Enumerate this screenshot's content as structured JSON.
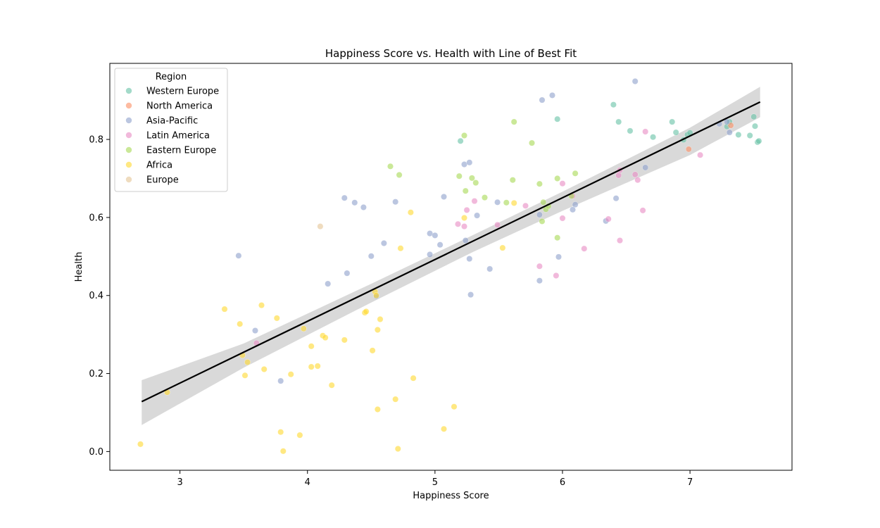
{
  "chart_data": {
    "type": "scatter",
    "title": "Happiness Score vs. Health with Line of Best Fit",
    "xlabel": "Happiness Score",
    "ylabel": "Health",
    "xlim": [
      2.45,
      7.8
    ],
    "ylim": [
      -0.048,
      0.995
    ],
    "x_ticks": [
      3,
      4,
      5,
      6,
      7
    ],
    "y_ticks": [
      0.0,
      0.2,
      0.4,
      0.6,
      0.8
    ],
    "x_tick_labels": [
      "3",
      "4",
      "5",
      "6",
      "7"
    ],
    "y_tick_labels": [
      "0.0",
      "0.2",
      "0.4",
      "0.6",
      "0.8"
    ],
    "grid": false,
    "legend": {
      "title": "Region",
      "placement": "top-left"
    },
    "fit_line": {
      "x": [
        2.7,
        7.55
      ],
      "y": [
        0.128,
        0.896
      ],
      "color": "#000000"
    },
    "confidence_band": {
      "x": [
        2.7,
        3.5,
        4.5,
        5.3,
        6.0,
        7.0,
        7.55
      ],
      "lower": [
        0.068,
        0.215,
        0.382,
        0.512,
        0.617,
        0.76,
        0.857
      ],
      "upper": [
        0.183,
        0.277,
        0.43,
        0.555,
        0.666,
        0.83,
        0.935
      ],
      "color": "#d9d9d9"
    },
    "series": [
      {
        "name": "Western Europe",
        "color": "#66c2a5",
        "points": [
          [
            5.2,
            0.796
          ],
          [
            5.96,
            0.852
          ],
          [
            6.4,
            0.889
          ],
          [
            6.44,
            0.845
          ],
          [
            6.53,
            0.822
          ],
          [
            6.71,
            0.806
          ],
          [
            6.86,
            0.845
          ],
          [
            6.89,
            0.818
          ],
          [
            6.95,
            0.799
          ],
          [
            6.98,
            0.812
          ],
          [
            7.0,
            0.817
          ],
          [
            7.29,
            0.833
          ],
          [
            7.31,
            0.845
          ],
          [
            7.38,
            0.812
          ],
          [
            7.47,
            0.81
          ],
          [
            7.5,
            0.858
          ],
          [
            7.51,
            0.834
          ],
          [
            7.53,
            0.793
          ],
          [
            7.54,
            0.796
          ]
        ]
      },
      {
        "name": "North America",
        "color": "#fc8d62",
        "points": [
          [
            6.99,
            0.775
          ],
          [
            7.32,
            0.836
          ]
        ]
      },
      {
        "name": "Asia-Pacific",
        "color": "#8da0cb",
        "points": [
          [
            3.46,
            0.502
          ],
          [
            3.59,
            0.31
          ],
          [
            3.79,
            0.181
          ],
          [
            4.16,
            0.43
          ],
          [
            4.29,
            0.65
          ],
          [
            4.31,
            0.457
          ],
          [
            4.37,
            0.638
          ],
          [
            4.44,
            0.626
          ],
          [
            4.5,
            0.501
          ],
          [
            4.54,
            0.398
          ],
          [
            4.6,
            0.534
          ],
          [
            4.69,
            0.64
          ],
          [
            4.96,
            0.559
          ],
          [
            4.96,
            0.505
          ],
          [
            5.0,
            0.554
          ],
          [
            5.04,
            0.53
          ],
          [
            5.07,
            0.653
          ],
          [
            5.23,
            0.736
          ],
          [
            5.24,
            0.541
          ],
          [
            5.27,
            0.494
          ],
          [
            5.27,
            0.741
          ],
          [
            5.28,
            0.402
          ],
          [
            5.33,
            0.605
          ],
          [
            5.43,
            0.468
          ],
          [
            5.49,
            0.639
          ],
          [
            5.82,
            0.607
          ],
          [
            5.82,
            0.438
          ],
          [
            5.84,
            0.901
          ],
          [
            5.92,
            0.913
          ],
          [
            5.97,
            0.499
          ],
          [
            6.08,
            0.62
          ],
          [
            6.1,
            0.633
          ],
          [
            6.34,
            0.591
          ],
          [
            6.42,
            0.649
          ],
          [
            6.57,
            0.949
          ],
          [
            6.65,
            0.728
          ],
          [
            7.23,
            0.84
          ],
          [
            7.29,
            0.845
          ],
          [
            7.31,
            0.818
          ]
        ]
      },
      {
        "name": "Latin America",
        "color": "#e78ac3",
        "points": [
          [
            3.6,
            0.278
          ],
          [
            5.18,
            0.583
          ],
          [
            5.23,
            0.577
          ],
          [
            5.25,
            0.619
          ],
          [
            5.31,
            0.642
          ],
          [
            5.49,
            0.581
          ],
          [
            5.71,
            0.63
          ],
          [
            5.82,
            0.475
          ],
          [
            5.95,
            0.451
          ],
          [
            6.0,
            0.598
          ],
          [
            6.0,
            0.687
          ],
          [
            6.08,
            0.655
          ],
          [
            6.17,
            0.52
          ],
          [
            6.36,
            0.596
          ],
          [
            6.44,
            0.708
          ],
          [
            6.45,
            0.541
          ],
          [
            6.45,
            0.721
          ],
          [
            6.57,
            0.71
          ],
          [
            6.59,
            0.696
          ],
          [
            6.63,
            0.618
          ],
          [
            6.65,
            0.82
          ],
          [
            7.08,
            0.76
          ]
        ]
      },
      {
        "name": "Eastern Europe",
        "color": "#a6d854",
        "points": [
          [
            4.65,
            0.731
          ],
          [
            4.72,
            0.709
          ],
          [
            5.19,
            0.706
          ],
          [
            5.23,
            0.81
          ],
          [
            5.24,
            0.668
          ],
          [
            5.29,
            0.701
          ],
          [
            5.32,
            0.689
          ],
          [
            5.39,
            0.651
          ],
          [
            5.56,
            0.638
          ],
          [
            5.61,
            0.696
          ],
          [
            5.62,
            0.845
          ],
          [
            5.76,
            0.791
          ],
          [
            5.82,
            0.686
          ],
          [
            5.84,
            0.59
          ],
          [
            5.85,
            0.639
          ],
          [
            5.87,
            0.621
          ],
          [
            5.89,
            0.629
          ],
          [
            5.96,
            0.548
          ],
          [
            5.96,
            0.7
          ],
          [
            6.07,
            0.655
          ],
          [
            6.1,
            0.713
          ]
        ]
      },
      {
        "name": "Africa",
        "color": "#ffd92f",
        "points": [
          [
            2.69,
            0.019
          ],
          [
            2.9,
            0.152
          ],
          [
            3.35,
            0.365
          ],
          [
            3.47,
            0.327
          ],
          [
            3.49,
            0.247
          ],
          [
            3.51,
            0.195
          ],
          [
            3.53,
            0.229
          ],
          [
            3.64,
            0.375
          ],
          [
            3.66,
            0.211
          ],
          [
            3.76,
            0.342
          ],
          [
            3.79,
            0.05
          ],
          [
            3.81,
            0.001
          ],
          [
            3.87,
            0.198
          ],
          [
            3.94,
            0.042
          ],
          [
            3.97,
            0.315
          ],
          [
            4.03,
            0.27
          ],
          [
            4.03,
            0.217
          ],
          [
            4.08,
            0.219
          ],
          [
            4.12,
            0.297
          ],
          [
            4.14,
            0.292
          ],
          [
            4.19,
            0.17
          ],
          [
            4.29,
            0.286
          ],
          [
            4.45,
            0.356
          ],
          [
            4.46,
            0.359
          ],
          [
            4.51,
            0.259
          ],
          [
            4.53,
            0.41
          ],
          [
            4.54,
            0.4
          ],
          [
            4.55,
            0.108
          ],
          [
            4.55,
            0.312
          ],
          [
            4.57,
            0.339
          ],
          [
            4.69,
            0.134
          ],
          [
            4.71,
            0.007
          ],
          [
            4.73,
            0.521
          ],
          [
            4.81,
            0.613
          ],
          [
            4.83,
            0.188
          ],
          [
            5.07,
            0.058
          ],
          [
            5.15,
            0.115
          ],
          [
            5.23,
            0.599
          ],
          [
            5.53,
            0.522
          ],
          [
            5.62,
            0.637
          ]
        ]
      },
      {
        "name": "Europe",
        "color": "#e5c494",
        "points": [
          [
            4.1,
            0.577
          ]
        ]
      }
    ]
  }
}
